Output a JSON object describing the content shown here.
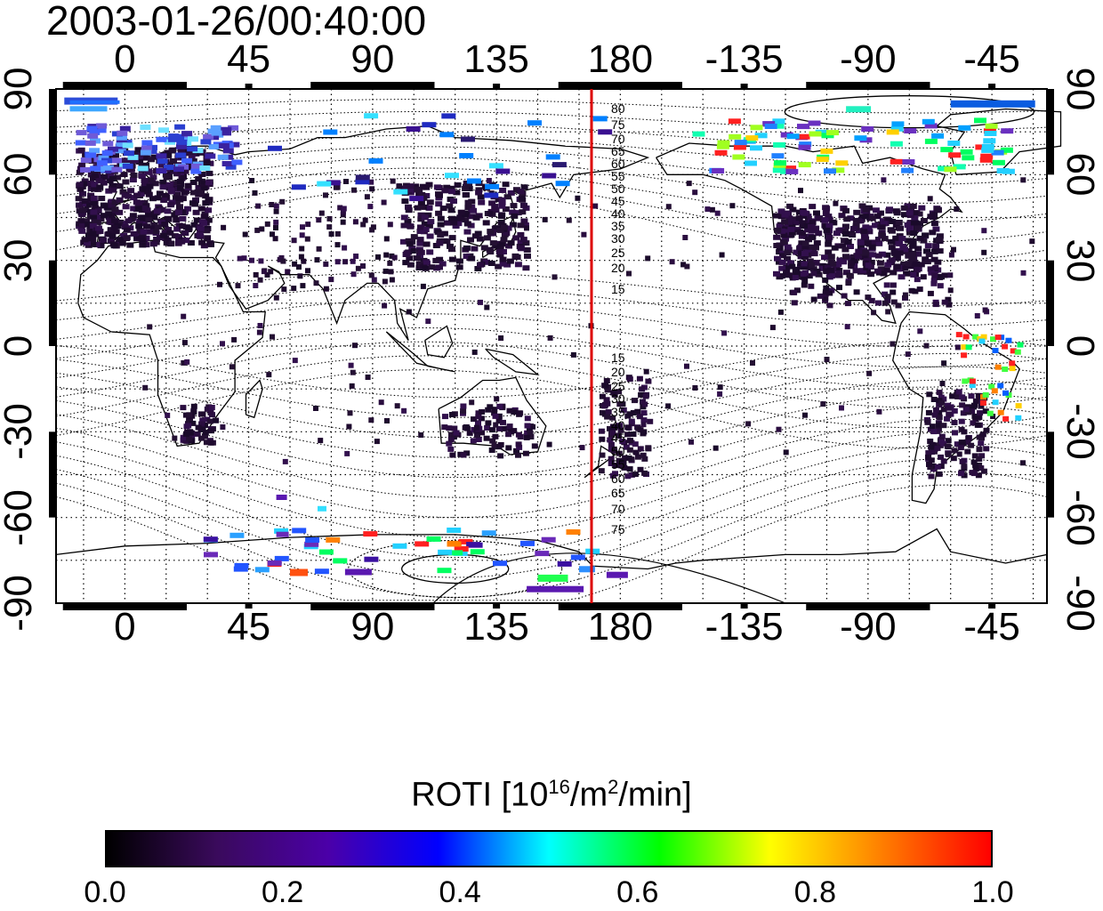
{
  "timestamp": "2003-01-26/00:40:00",
  "map": {
    "projection": "equirectangular",
    "lon_center": 180,
    "lon_range": [
      -25,
      335
    ],
    "lat_range": [
      -90,
      90
    ],
    "top_ticks": [
      "0",
      "45",
      "90",
      "135",
      "180",
      "-135",
      "-90",
      "-45"
    ],
    "bottom_ticks": [
      "0",
      "45",
      "90",
      "135",
      "180",
      "-135",
      "-90",
      "-45"
    ],
    "left_ticks": [
      "90",
      "60",
      "30",
      "0",
      "-30",
      "-60",
      "-90"
    ],
    "right_ticks": [
      "90",
      "60",
      "30",
      "0",
      "-30",
      "-60",
      "-90"
    ],
    "grid": "dotted every 15 degrees",
    "red_line_lon": 170,
    "red_line_color": "#dd0000",
    "contour_labels_north": [
      "80",
      "75",
      "70",
      "65",
      "60",
      "55",
      "50",
      "45",
      "40",
      "35",
      "30",
      "25",
      "20",
      "15"
    ],
    "contour_labels_south": [
      "15",
      "20",
      "25",
      "30",
      "35",
      "40",
      "45",
      "50",
      "55",
      "60",
      "65",
      "70",
      "75"
    ]
  },
  "colorbar": {
    "title_prefix": "ROTI  [10",
    "title_sup1": "16",
    "title_mid": "/m",
    "title_sup2": "2",
    "title_suffix": "/min]",
    "ticks": [
      "0.0",
      "0.2",
      "0.4",
      "0.6",
      "0.8",
      "1.0"
    ],
    "range": [
      0.0,
      1.0
    ],
    "colors": [
      "#000000",
      "#3a0a5c",
      "#4b00a8",
      "#0000ff",
      "#00ffff",
      "#00ff00",
      "#ffff00",
      "#ff8000",
      "#ff0000"
    ]
  }
}
